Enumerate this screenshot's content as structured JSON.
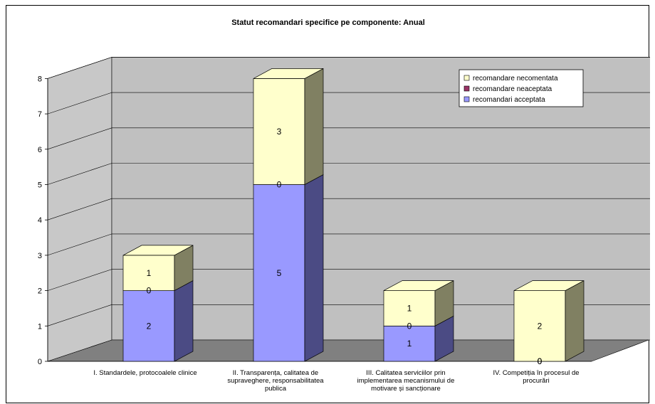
{
  "chart_data": {
    "type": "bar",
    "stacked": true,
    "three_d": true,
    "title": "Statut recomandari specifice pe componente: Anual",
    "categories": [
      "I. Standardele, protocoalele clinice",
      "II. Transparența, calitatea de supraveghere, responsabilitatea publica",
      "III. Calitatea serviciilor prin implementarea mecanismului de motivare și sancționare",
      "IV. Competiția în procesul de procurări"
    ],
    "series": [
      {
        "name": "recomandari acceptata",
        "values": [
          2,
          5,
          1,
          0
        ],
        "color": "#9999ff",
        "side": "#4b4b84",
        "top": "#6666aa"
      },
      {
        "name": "recomandare neaceptata",
        "values": [
          0,
          0,
          0,
          0
        ],
        "color": "#993366",
        "side": "#5a1e3c",
        "top": "#7a2a52"
      },
      {
        "name": "recomandare necomentata",
        "values": [
          1,
          3,
          1,
          2
        ],
        "color": "#ffffcc",
        "side": "#808062",
        "top": "#ffffcc"
      }
    ],
    "yticks": [
      "0",
      "1",
      "2",
      "3",
      "4",
      "5",
      "6",
      "7",
      "8"
    ],
    "ylim": [
      0,
      8
    ],
    "grid": true,
    "legend": "top-right",
    "colors": {
      "wall": "#c0c0c0",
      "floor": "#808080",
      "side_wall": "#c8c8c8"
    }
  }
}
